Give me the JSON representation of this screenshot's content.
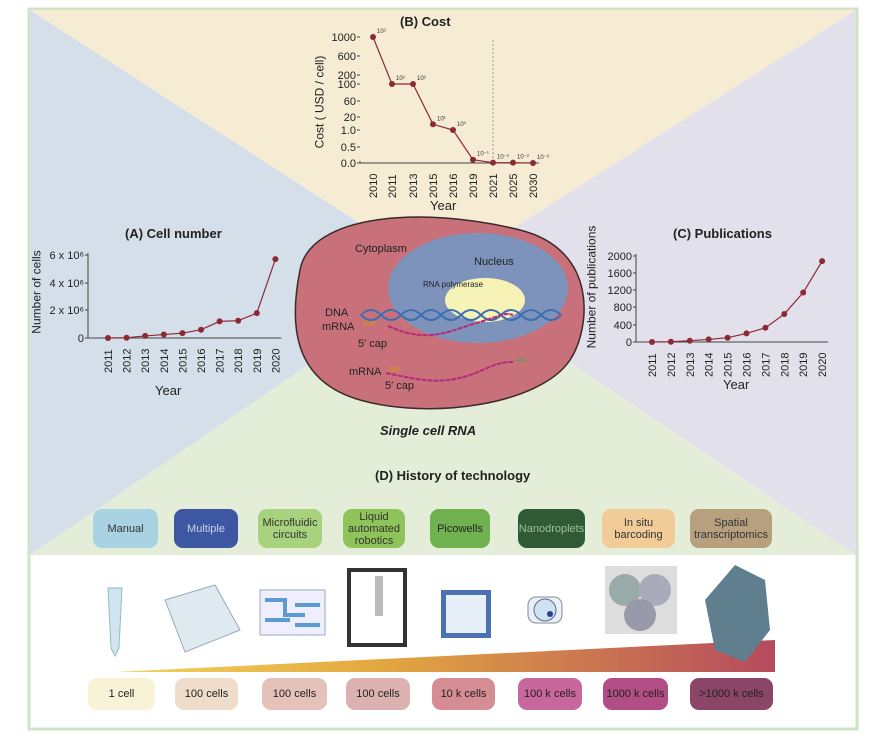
{
  "colors": {
    "top": "#f5ecd3",
    "left": "#d5dfe9",
    "right": "#e2e0eb",
    "bottom": "#e4edd7",
    "marker": "#8b2a35",
    "frame": "#cfe3c6"
  },
  "chart_data": [
    {
      "type": "line",
      "title": "(B) Cost",
      "xlabel": "Year",
      "ylabel": "Cost ( USD / cell)",
      "categories": [
        "2010",
        "2011",
        "2013",
        "2015",
        "2016",
        "2019",
        "2021",
        "2025",
        "2030"
      ],
      "values": [
        1000,
        100,
        100,
        10,
        1,
        0.1,
        0.01,
        0.01,
        0.001
      ],
      "data_labels": [
        "10³",
        "10²",
        "10²",
        "10¹",
        "10⁰",
        "10⁻¹",
        "10⁻²",
        "10⁻²",
        "10⁻³"
      ],
      "y_ticks": [
        "1000",
        "600",
        "200",
        "100",
        "60",
        "20",
        "1.0",
        "0.5",
        "0.0"
      ],
      "broken_axis": true,
      "divider_after": "2019"
    },
    {
      "type": "line",
      "title": "(A) Cell number",
      "xlabel": "Year",
      "ylabel": "Number of cells",
      "categories": [
        "2011",
        "2012",
        "2013",
        "2014",
        "2015",
        "2016",
        "2017",
        "2018",
        "2019",
        "2020"
      ],
      "values": [
        0,
        20000,
        150000,
        250000,
        350000,
        600000,
        1200000,
        1250000,
        1800000,
        5700000
      ],
      "y_ticks": [
        "0",
        "2 x 10⁶",
        "4 x 10⁶",
        "6 x 10⁶"
      ],
      "ylim": [
        0,
        6000000
      ]
    },
    {
      "type": "line",
      "title": "(C) Publications",
      "xlabel": "Year",
      "ylabel": "Number of publications",
      "categories": [
        "2011",
        "2012",
        "2013",
        "2014",
        "2015",
        "2016",
        "2017",
        "2018",
        "2019",
        "2020"
      ],
      "values": [
        0,
        5,
        30,
        60,
        100,
        200,
        330,
        650,
        1150,
        1880
      ],
      "y_ticks": [
        "0",
        "400",
        "800",
        "1200",
        "1600",
        "2000"
      ],
      "ylim": [
        0,
        2000
      ]
    }
  ],
  "cell": {
    "cytoplasm": "Cytoplasm",
    "nucleus": "Nucleus",
    "polymerase": "RNA polymerase",
    "dna": "DNA",
    "mrna1": "mRNA",
    "cap1": "5′ cap",
    "mrna2": "mRNA",
    "cap2": "5′ cap",
    "ppp": "PPP",
    "aaa": "AAA",
    "caption": "Single cell RNA"
  },
  "history": {
    "title": "(D) History of technology",
    "techs": [
      {
        "label": "Manual",
        "color": "#a9d2e2",
        "text": "#333"
      },
      {
        "label": "Multiple",
        "color": "#3e57a3",
        "text": "#c9d2ec"
      },
      {
        "label": "Microfluidic circuits",
        "color": "#a8d27d",
        "text": "#333"
      },
      {
        "label": "Liquid automated robotics",
        "color": "#8fc45a",
        "text": "#333"
      },
      {
        "label": "Picowells",
        "color": "#6fb24f",
        "text": "#222"
      },
      {
        "label": "Nanodroplets",
        "color": "#2f5a35",
        "text": "#9fbf9f"
      },
      {
        "label": "In situ barcoding",
        "color": "#f2cc98",
        "text": "#333"
      },
      {
        "label": "Spatial transcriptomics",
        "color": "#b7a07e",
        "text": "#333"
      }
    ],
    "counts": [
      {
        "label": "1 cell",
        "color": "#f8f3d6"
      },
      {
        "label": "100 cells",
        "color": "#efdccb"
      },
      {
        "label": "100 cells",
        "color": "#e4c2b9"
      },
      {
        "label": "100 cells",
        "color": "#ddb1b0"
      },
      {
        "label": "10 k cells",
        "color": "#d58c92"
      },
      {
        "label": "100 k cells",
        "color": "#c7679c"
      },
      {
        "label": "1000 k cells",
        "color": "#b24e85"
      },
      {
        "label": ">1000 k cells",
        "color": "#8b4567"
      }
    ]
  }
}
